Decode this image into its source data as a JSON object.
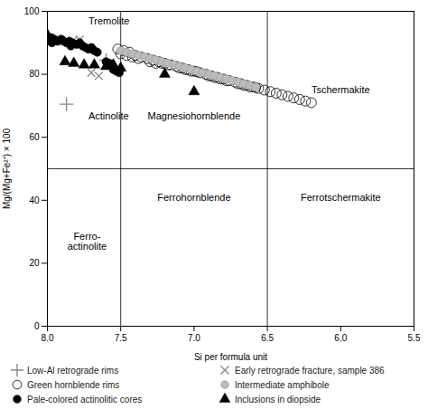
{
  "chart_data": {
    "type": "scatter",
    "xlabel": "Si per formula unit",
    "ylabel": "Mg/(Mg+Fe²⁺) × 100",
    "xlim": [
      8.0,
      5.5
    ],
    "ylim": [
      0,
      100
    ],
    "xticks": [
      {
        "value": 8.0,
        "label": "8.0"
      },
      7.5,
      {
        "value": 7.0,
        "label": "7.0"
      },
      6.5,
      {
        "value": 6.0,
        "label": "6.0"
      },
      5.5
    ],
    "yticks": [
      0,
      20,
      40,
      60,
      80,
      100
    ],
    "grid": false,
    "legend": "bottom",
    "vlines": [
      7.5,
      6.5
    ],
    "hlines": [
      50
    ],
    "annotations": [
      {
        "text": "Tremolite",
        "x": 7.72,
        "y": 98
      },
      {
        "text": "Actinolite",
        "x": 7.72,
        "y": 68
      },
      {
        "text": "Magnesiohornblende",
        "x": 7.0,
        "y": 68
      },
      {
        "text": "Tschermakite",
        "x": 6.0,
        "y": 75
      },
      {
        "text": "Ferro-\nactinolite",
        "x": 7.73,
        "y": 27
      },
      {
        "text": "Ferrohornblende",
        "x": 7.0,
        "y": 42
      },
      {
        "text": "Ferrotschermakite",
        "x": 6.0,
        "y": 42
      }
    ],
    "series": [
      {
        "name": "Low-Al retrograde rims",
        "color": "#888888",
        "marker": "plus",
        "values": [
          [
            7.87,
            70.5
          ],
          [
            7.6,
            84.5
          ]
        ]
      },
      {
        "name": "Early retrograde fracture, sample 386",
        "color": "#888888",
        "marker": "cross",
        "values": [
          [
            7.93,
            91.5
          ],
          [
            7.83,
            90.5
          ],
          [
            7.7,
            80.5
          ],
          [
            7.65,
            79.5
          ],
          [
            7.78,
            91.0
          ]
        ]
      },
      {
        "name": "Green hornblende rims",
        "color": "#000000",
        "marker": "open_circle",
        "values": [
          [
            7.52,
            88.0
          ],
          [
            7.48,
            87.5
          ],
          [
            7.44,
            87.0
          ],
          [
            7.4,
            86.0
          ],
          [
            7.36,
            85.5
          ],
          [
            7.32,
            85.0
          ],
          [
            7.28,
            84.5
          ],
          [
            7.24,
            84.0
          ],
          [
            7.2,
            83.5
          ],
          [
            7.16,
            83.0
          ],
          [
            7.12,
            82.5
          ],
          [
            7.08,
            82.0
          ],
          [
            7.04,
            81.5
          ],
          [
            7.0,
            81.0
          ],
          [
            6.96,
            80.5
          ],
          [
            6.92,
            80.0
          ],
          [
            6.88,
            79.5
          ],
          [
            6.84,
            79.0
          ],
          [
            6.8,
            78.5
          ],
          [
            6.76,
            78.0
          ],
          [
            6.72,
            77.5
          ],
          [
            6.68,
            77.0
          ],
          [
            6.64,
            76.5
          ],
          [
            6.6,
            76.0
          ],
          [
            6.56,
            75.5
          ],
          [
            6.52,
            75.0
          ],
          [
            6.48,
            74.5
          ],
          [
            6.44,
            74.0
          ],
          [
            6.4,
            73.5
          ],
          [
            6.36,
            73.0
          ],
          [
            6.32,
            72.5
          ],
          [
            6.28,
            72.0
          ],
          [
            6.24,
            71.5
          ],
          [
            6.2,
            71.0
          ],
          [
            7.38,
            85.0
          ],
          [
            7.18,
            83.0
          ],
          [
            6.98,
            80.8
          ],
          [
            6.78,
            78.0
          ],
          [
            6.58,
            75.8
          ],
          [
            7.5,
            86.5
          ],
          [
            7.3,
            84.0
          ],
          [
            7.1,
            82.0
          ],
          [
            6.9,
            79.5
          ],
          [
            6.7,
            77.0
          ],
          [
            7.46,
            86.0
          ],
          [
            7.26,
            83.5
          ],
          [
            7.06,
            81.5
          ],
          [
            6.86,
            79.0
          ],
          [
            6.66,
            76.5
          ],
          [
            7.42,
            85.5
          ],
          [
            7.22,
            83.5
          ],
          [
            7.02,
            81.0
          ],
          [
            6.82,
            78.5
          ],
          [
            6.62,
            76.0
          ]
        ]
      },
      {
        "name": "Intermediate amphibole",
        "color": "#bbbbbb",
        "marker": "circle",
        "values": [
          [
            7.5,
            87.5
          ],
          [
            7.46,
            87.0
          ],
          [
            7.42,
            86.5
          ],
          [
            7.38,
            86.0
          ],
          [
            7.34,
            85.5
          ],
          [
            7.3,
            85.0
          ],
          [
            7.26,
            84.5
          ],
          [
            7.22,
            84.0
          ],
          [
            7.18,
            83.5
          ],
          [
            7.14,
            83.0
          ],
          [
            7.1,
            82.5
          ],
          [
            7.06,
            82.0
          ],
          [
            7.02,
            81.5
          ],
          [
            6.98,
            81.0
          ],
          [
            6.94,
            80.5
          ],
          [
            6.9,
            80.0
          ],
          [
            6.86,
            79.5
          ],
          [
            6.82,
            79.0
          ],
          [
            6.78,
            78.5
          ],
          [
            6.74,
            78.0
          ],
          [
            6.7,
            77.5
          ],
          [
            6.66,
            77.0
          ],
          [
            6.62,
            76.5
          ],
          [
            6.58,
            76.0
          ]
        ]
      },
      {
        "name": "Pale-colored actinolitic cores",
        "color": "#000000",
        "marker": "circle",
        "values": [
          [
            7.97,
            91.5
          ],
          [
            7.95,
            91.0
          ],
          [
            7.93,
            90.5
          ],
          [
            7.91,
            91.0
          ],
          [
            7.89,
            90.5
          ],
          [
            7.87,
            90.0
          ],
          [
            7.85,
            90.5
          ],
          [
            7.83,
            90.0
          ],
          [
            7.8,
            89.5
          ],
          [
            7.78,
            90.0
          ],
          [
            7.76,
            89.0
          ],
          [
            7.74,
            88.5
          ],
          [
            7.72,
            88.0
          ],
          [
            7.7,
            88.5
          ],
          [
            7.68,
            87.5
          ],
          [
            7.66,
            87.0
          ],
          [
            7.55,
            81.5
          ],
          [
            7.53,
            81.0
          ],
          [
            7.51,
            80.5
          ],
          [
            7.97,
            90.0
          ],
          [
            7.9,
            91.0
          ],
          [
            7.84,
            89.0
          ],
          [
            7.6,
            84.0
          ],
          [
            7.58,
            83.5
          ]
        ]
      },
      {
        "name": "Inclusions in diopside",
        "color": "#000000",
        "marker": "triangle",
        "values": [
          [
            8.0,
            92.5
          ],
          [
            7.97,
            91.0
          ],
          [
            7.88,
            84.0
          ],
          [
            7.82,
            83.5
          ],
          [
            7.75,
            83.0
          ],
          [
            7.68,
            83.0
          ],
          [
            7.6,
            82.5
          ],
          [
            7.55,
            83.0
          ],
          [
            7.5,
            82.0
          ],
          [
            7.2,
            80.0
          ],
          [
            7.0,
            74.5
          ]
        ]
      }
    ]
  }
}
